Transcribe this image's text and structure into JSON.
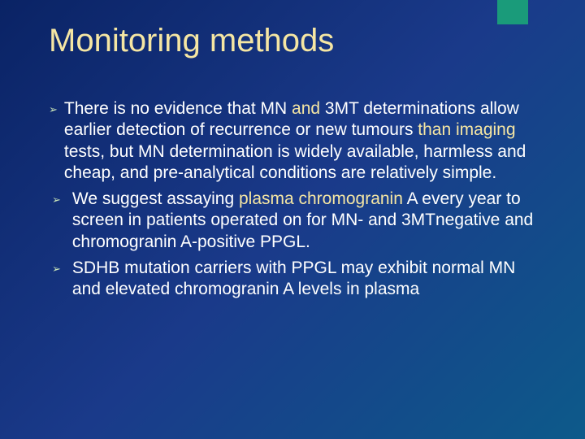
{
  "slide": {
    "title": "Monitoring methods",
    "accent_color": "#1a9b7a",
    "title_color": "#f5e6a3",
    "text_color": "#ffffff",
    "highlight_color": "#f5e6a3",
    "bullet_marker_color": "#c9e4b8",
    "background_gradient": [
      "#0a2365",
      "#1a3a8a",
      "#0d5a8a"
    ],
    "title_fontsize": 40,
    "body_fontsize": 21,
    "bullets": [
      {
        "indent": false,
        "segments": [
          {
            "t": "There is no evidence that MN ",
            "hl": false
          },
          {
            "t": "and ",
            "hl": true
          },
          {
            "t": "3MT determinations allow earlier detection of recurrence or new tumours ",
            "hl": false
          },
          {
            "t": "than imaging ",
            "hl": true
          },
          {
            "t": "tests, but MN determination is widely available, harmless and cheap, and pre-analytical conditions are relatively simple.",
            "hl": false
          }
        ]
      },
      {
        "indent": true,
        "segments": [
          {
            "t": "We suggest assaying ",
            "hl": false
          },
          {
            "t": "plasma chromogranin ",
            "hl": true
          },
          {
            "t": "A every year to screen in patients operated on for MN- and 3MTnegative and chromogranin A-positive PPGL.",
            "hl": false
          }
        ]
      },
      {
        "indent": true,
        "segments": [
          {
            "t": "SDHB mutation carriers with PPGL may exhibit normal MN and elevated chromogranin A levels in plasma",
            "hl": false
          }
        ]
      }
    ]
  }
}
